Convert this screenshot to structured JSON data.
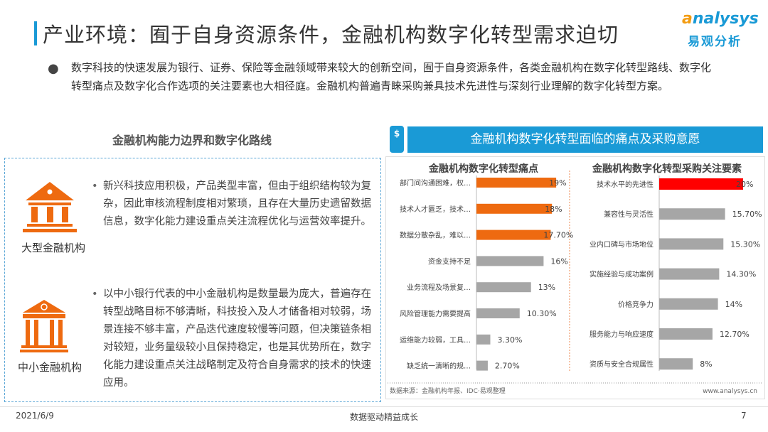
{
  "header": {
    "title": "产业环境：囿于自身资源条件，金融机构数字化转型需求迫切",
    "logo_en": "analysys",
    "logo_cn": "易观分析"
  },
  "intro": "数字科技的快速发展为银行、证券、保险等金融领域带来较大的创新空间，囿于自身资源条件，各类金融机构在数字化转型路线、数字化转型痛点及数字化合作选项的关注要素也大相径庭。金融机构普遍青睐采购兼具技术先进性与深刻行业理解的数字化转型方案。",
  "left": {
    "heading": "金融机构能力边界和数字化路线",
    "items": [
      {
        "label": "大型金融机构",
        "icon": "bank-building-icon",
        "text": "新兴科技应用积极，产品类型丰富，但由于组织结构较为复杂，因此审核流程制度相对繁琐，且存在大量历史遗留数据信息，数字化能力建设重点关注流程优化与运营效率提升。"
      },
      {
        "label": "中小金融机构",
        "icon": "small-bank-icon",
        "text": "以中小银行代表的中小金融机构是数量最为庞大，普遍存在转型战略目标不够清晰，科技投入及人才储备相对较弱，场景连接不够丰富，产品迭代速度较慢等问题，但决策链条相对较短，业务量级较小且保持稳定，也是其优势所在，数字化能力建设重点关注战略制定及符合自身需求的技术的快速应用。"
      }
    ]
  },
  "right": {
    "heading": "金融机构数字化转型面临的痛点及采购意愿",
    "icon": "dollar-phone-icon",
    "source": "数据来源：金融机构年报、IDC·易观整理",
    "website": "www.analysys.cn"
  },
  "chart_data": [
    {
      "type": "bar",
      "orientation": "horizontal",
      "title": "金融机构数字化转型痛点",
      "categories": [
        "部门间沟通困难，权…",
        "技术人才匮乏，技术…",
        "数据分散杂乱，难以…",
        "资金支持不足",
        "业务流程及场景复…",
        "风险管理能力需要提高",
        "运维能力较弱，工具…",
        "缺乏统一清晰的规…"
      ],
      "values": [
        19,
        18,
        17.7,
        16,
        13,
        10.3,
        3.3,
        2.7
      ],
      "labels": [
        "19%",
        "18%",
        "17.70%",
        "16%",
        "13%",
        "10.30%",
        "3.30%",
        "2.70%"
      ],
      "colors": [
        "#ee6a10",
        "#ee6a10",
        "#ee6a10",
        "#a6a6a6",
        "#a6a6a6",
        "#a6a6a6",
        "#a6a6a6",
        "#a6a6a6"
      ],
      "xlim": [
        0,
        20
      ]
    },
    {
      "type": "bar",
      "orientation": "horizontal",
      "title": "金融机构数字化转型采购关注要素",
      "categories": [
        "技术水平的先进性",
        "兼容性与灵活性",
        "业内口碑与市场地位",
        "实施经验与成功案例",
        "价格竞争力",
        "服务能力与响应速度",
        "资质与安全合规属性"
      ],
      "values": [
        20,
        15.7,
        15.3,
        14.3,
        14,
        12.7,
        8
      ],
      "labels": [
        "20%",
        "15.70%",
        "15.30%",
        "14.30%",
        "14%",
        "12.70%",
        "8%"
      ],
      "colors": [
        "#ff0000",
        "#a6a6a6",
        "#a6a6a6",
        "#a6a6a6",
        "#a6a6a6",
        "#a6a6a6",
        "#a6a6a6"
      ],
      "xlim": [
        0,
        20
      ]
    }
  ],
  "footer": {
    "date": "2021/6/9",
    "slogan": "数据驱动精益成长",
    "page": "7"
  }
}
